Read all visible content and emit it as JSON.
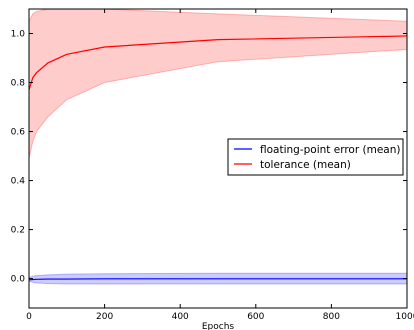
{
  "chart_data": {
    "type": "line",
    "title": "",
    "xlabel": "Epochs",
    "ylabel": "",
    "xlim": [
      0,
      1000
    ],
    "ylim": [
      -0.12,
      1.1
    ],
    "xticks": [
      0,
      200,
      400,
      600,
      800,
      1000
    ],
    "xtick_labels": [
      "0",
      "200",
      "400",
      "600",
      "800",
      "1000"
    ],
    "yticks": [
      0.0,
      0.2,
      0.4,
      0.6,
      0.8,
      1.0
    ],
    "ytick_labels": [
      "0.0",
      "0.2",
      "0.4",
      "0.6",
      "0.8",
      "1.0"
    ],
    "grid": false,
    "legend_position": "center-right",
    "series": [
      {
        "name": "floating-point error (mean)",
        "color": "#0000ff",
        "x": [
          0,
          10,
          20,
          50,
          100,
          200,
          500,
          1000
        ],
        "mean": [
          -0.005,
          -0.004,
          -0.003,
          -0.002,
          -0.002,
          -0.001,
          -0.001,
          -0.001
        ],
        "upper": [
          0.005,
          0.01,
          0.012,
          0.015,
          0.018,
          0.02,
          0.022,
          0.022
        ],
        "lower": [
          -0.01,
          -0.015,
          -0.018,
          -0.02,
          -0.022,
          -0.022,
          -0.022,
          -0.022
        ]
      },
      {
        "name": "tolerance (mean)",
        "color": "#ff0000",
        "x": [
          0,
          10,
          20,
          50,
          100,
          200,
          500,
          1000
        ],
        "mean": [
          0.77,
          0.82,
          0.84,
          0.88,
          0.915,
          0.945,
          0.975,
          0.99
        ],
        "upper": [
          1.05,
          1.08,
          1.09,
          1.1,
          1.1,
          1.1,
          1.08,
          1.05
        ],
        "lower": [
          0.49,
          0.56,
          0.6,
          0.66,
          0.73,
          0.8,
          0.885,
          0.935
        ]
      }
    ]
  }
}
